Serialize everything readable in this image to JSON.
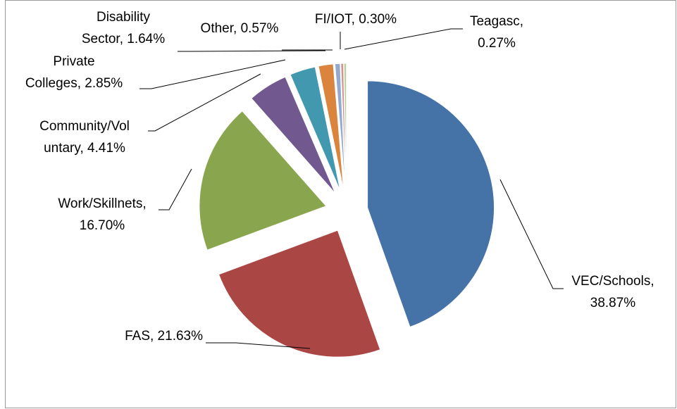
{
  "chart_data": {
    "type": "pie",
    "categories": [
      "VEC/Schools",
      "FAS",
      "Work/Skillnets",
      "Community/Voluntary",
      "Private Colleges",
      "Disability Sector",
      "Other",
      "FI/IOT",
      "Teagasc"
    ],
    "values": [
      38.87,
      21.63,
      16.7,
      4.41,
      2.85,
      1.64,
      0.57,
      0.3,
      0.27
    ],
    "value_labels": [
      "VEC/Schools,\n38.87%",
      "FAS, 21.63%",
      "Work/Skillnets,\n16.70%",
      "Community/Vol\nuntary, 4.41%",
      "Private\nColleges, 2.85%",
      "Disability\nSector, 1.64%",
      "Other, 0.57%",
      "FI/IOT, 0.30%",
      "Teagasc,\n0.27%"
    ],
    "colors": [
      "#4572a7",
      "#aa4643",
      "#89a54e",
      "#71588f",
      "#4198af",
      "#db843d",
      "#93a9cf",
      "#d19392",
      "#b9cd96"
    ]
  }
}
